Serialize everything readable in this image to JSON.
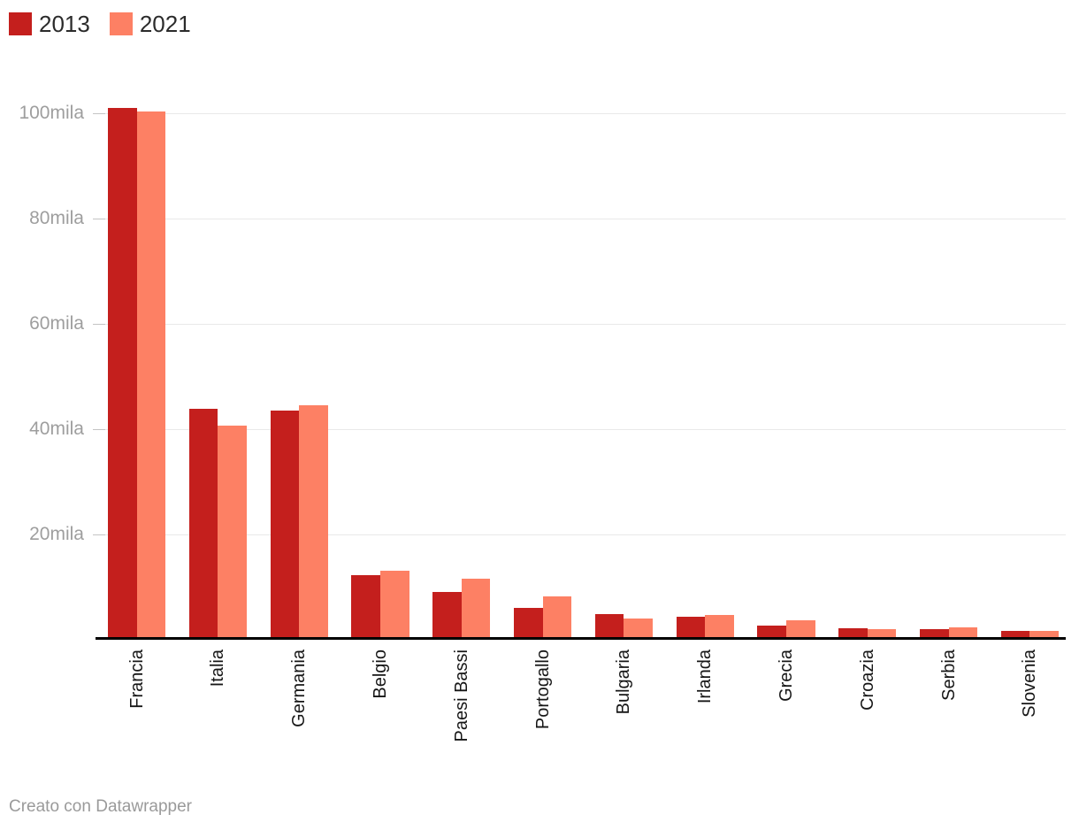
{
  "chart_data": {
    "type": "bar",
    "title": "",
    "xlabel": "",
    "ylabel": "",
    "categories": [
      "Francia",
      "Italia",
      "Germania",
      "Belgio",
      "Paesi Bassi",
      "Portogallo",
      "Bulgaria",
      "Irlanda",
      "Grecia",
      "Croazia",
      "Serbia",
      "Slovenia"
    ],
    "series": [
      {
        "name": "2013",
        "color": "#c41f1d",
        "values": [
          101000,
          43900,
          43500,
          12300,
          9100,
          6000,
          4800,
          4400,
          2700,
          2200,
          2100,
          1600
        ]
      },
      {
        "name": "2021",
        "color": "#fd8064",
        "values": [
          100300,
          40600,
          44500,
          13100,
          11600,
          8200,
          4000,
          4700,
          3700,
          2100,
          2400,
          1700
        ]
      }
    ],
    "yticks": [
      {
        "value": 20000,
        "label": "20mila"
      },
      {
        "value": 40000,
        "label": "40mila"
      },
      {
        "value": 60000,
        "label": "60mila"
      },
      {
        "value": 80000,
        "label": "80mila"
      },
      {
        "value": 100000,
        "label": "100mila"
      }
    ],
    "ylim": [
      0,
      103000
    ],
    "grid": "horizontal",
    "legend_position": "top-left"
  },
  "footer": {
    "text": "Creato con Datawrapper"
  },
  "colors": {
    "background": "#ffffff",
    "gridline": "#e9e9e9",
    "grid_tick": "#c4c4c4",
    "axis_line": "#000000",
    "ytick_label": "#9e9e9e",
    "category_label": "#161616",
    "legend_label": "#2b2b2b",
    "footer_text": "#9a9a9a"
  }
}
